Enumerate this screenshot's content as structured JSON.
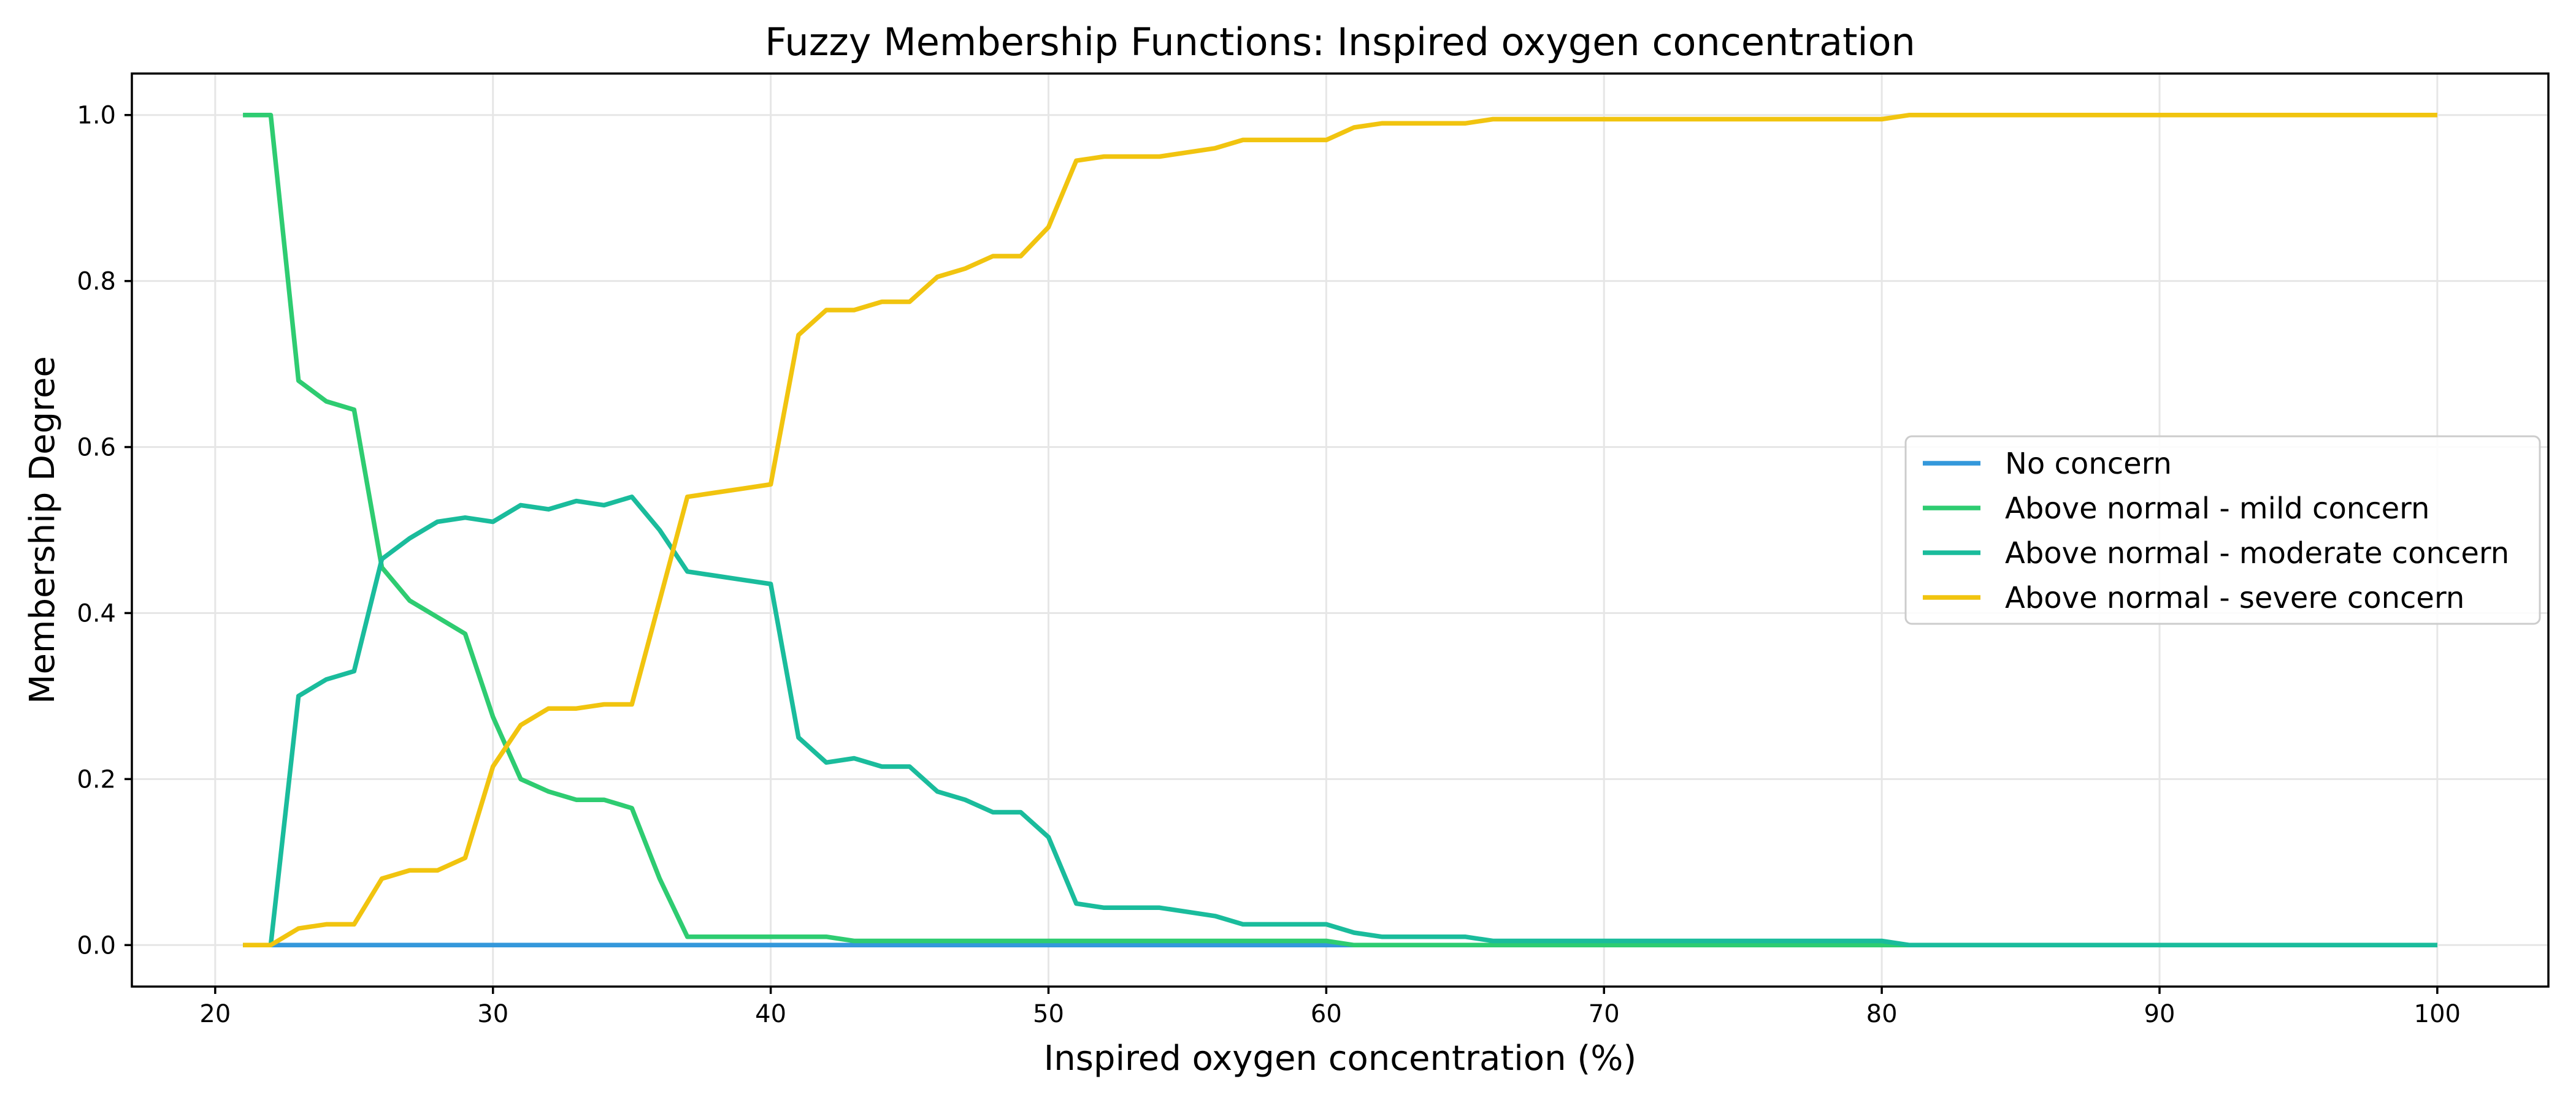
{
  "chart_data": {
    "type": "line",
    "title": "Fuzzy Membership Functions: Inspired oxygen concentration",
    "xlabel": "Inspired oxygen concentration (%)",
    "ylabel": "Membership Degree",
    "xlim": [
      17,
      104
    ],
    "ylim": [
      -0.05,
      1.05
    ],
    "x_ticks": [
      20,
      30,
      40,
      50,
      60,
      70,
      80,
      90,
      100
    ],
    "y_ticks": [
      0.0,
      0.2,
      0.4,
      0.6,
      0.8,
      1.0
    ],
    "x_tick_labels": [
      "20",
      "30",
      "40",
      "50",
      "60",
      "70",
      "80",
      "90",
      "100"
    ],
    "y_tick_labels": [
      "0.0",
      "0.2",
      "0.4",
      "0.6",
      "0.8",
      "1.0"
    ],
    "grid": true,
    "legend_position": "center-right",
    "x": [
      21,
      22,
      23,
      24,
      25,
      26,
      27,
      28,
      29,
      30,
      31,
      32,
      33,
      34,
      35,
      36,
      37,
      38,
      39,
      40,
      41,
      42,
      43,
      44,
      45,
      46,
      47,
      48,
      49,
      50,
      51,
      52,
      53,
      54,
      55,
      56,
      57,
      58,
      59,
      60,
      61,
      62,
      63,
      64,
      65,
      66,
      67,
      68,
      69,
      70,
      71,
      72,
      73,
      74,
      75,
      76,
      77,
      78,
      79,
      80,
      81,
      82,
      83,
      84,
      85,
      86,
      87,
      88,
      89,
      90,
      91,
      92,
      93,
      94,
      95,
      96,
      97,
      98,
      99,
      100
    ],
    "series": [
      {
        "name": "No concern",
        "color": "#3498db",
        "values": [
          0,
          0,
          0,
          0,
          0,
          0,
          0,
          0,
          0,
          0,
          0,
          0,
          0,
          0,
          0,
          0,
          0,
          0,
          0,
          0,
          0,
          0,
          0,
          0,
          0,
          0,
          0,
          0,
          0,
          0,
          0,
          0,
          0,
          0,
          0,
          0,
          0,
          0,
          0,
          0,
          0,
          0,
          0,
          0,
          0,
          0,
          0,
          0,
          0,
          0,
          0,
          0,
          0,
          0,
          0,
          0,
          0,
          0,
          0,
          0,
          0,
          0,
          0,
          0,
          0,
          0,
          0,
          0,
          0,
          0,
          0,
          0,
          0,
          0,
          0,
          0,
          0,
          0,
          0,
          0
        ]
      },
      {
        "name": "Above normal - mild concern",
        "color": "#2ecc71",
        "values": [
          1.0,
          1.0,
          0.68,
          0.655,
          0.645,
          0.455,
          0.415,
          0.395,
          0.375,
          0.275,
          0.2,
          0.185,
          0.175,
          0.175,
          0.165,
          0.08,
          0.01,
          0.01,
          0.01,
          0.01,
          0.01,
          0.01,
          0.005,
          0.005,
          0.005,
          0.005,
          0.005,
          0.005,
          0.005,
          0.005,
          0.005,
          0.005,
          0.005,
          0.005,
          0.005,
          0.005,
          0.005,
          0.005,
          0.005,
          0.005,
          0,
          0,
          0,
          0,
          0,
          0,
          0,
          0,
          0,
          0,
          0,
          0,
          0,
          0,
          0,
          0,
          0,
          0,
          0,
          0,
          0,
          0,
          0,
          0,
          0,
          0,
          0,
          0,
          0,
          0,
          0,
          0,
          0,
          0,
          0,
          0,
          0,
          0,
          0,
          0
        ]
      },
      {
        "name": "Above normal - moderate concern",
        "color": "#1abc9c",
        "values": [
          0,
          0,
          0.3,
          0.32,
          0.33,
          0.465,
          0.49,
          0.51,
          0.515,
          0.51,
          0.53,
          0.525,
          0.535,
          0.53,
          0.54,
          0.5,
          0.45,
          0.445,
          0.44,
          0.435,
          0.25,
          0.22,
          0.225,
          0.215,
          0.215,
          0.185,
          0.175,
          0.16,
          0.16,
          0.13,
          0.05,
          0.045,
          0.045,
          0.045,
          0.04,
          0.035,
          0.025,
          0.025,
          0.025,
          0.025,
          0.015,
          0.01,
          0.01,
          0.01,
          0.01,
          0.005,
          0.005,
          0.005,
          0.005,
          0.005,
          0.005,
          0.005,
          0.005,
          0.005,
          0.005,
          0.005,
          0.005,
          0.005,
          0.005,
          0.005,
          0,
          0,
          0,
          0,
          0,
          0,
          0,
          0,
          0,
          0,
          0,
          0,
          0,
          0,
          0,
          0,
          0,
          0,
          0,
          0
        ]
      },
      {
        "name": "Above normal - severe concern",
        "color": "#f1c40f",
        "values": [
          0,
          0,
          0.02,
          0.025,
          0.025,
          0.08,
          0.09,
          0.09,
          0.105,
          0.215,
          0.265,
          0.285,
          0.285,
          0.29,
          0.29,
          0.415,
          0.54,
          0.545,
          0.55,
          0.555,
          0.735,
          0.765,
          0.765,
          0.775,
          0.775,
          0.805,
          0.815,
          0.83,
          0.83,
          0.865,
          0.945,
          0.95,
          0.95,
          0.95,
          0.955,
          0.96,
          0.97,
          0.97,
          0.97,
          0.97,
          0.985,
          0.99,
          0.99,
          0.99,
          0.99,
          0.995,
          0.995,
          0.995,
          0.995,
          0.995,
          0.995,
          0.995,
          0.995,
          0.995,
          0.995,
          0.995,
          0.995,
          0.995,
          0.995,
          0.995,
          1.0,
          1.0,
          1.0,
          1.0,
          1.0,
          1.0,
          1.0,
          1.0,
          1.0,
          1.0,
          1.0,
          1.0,
          1.0,
          1.0,
          1.0,
          1.0,
          1.0,
          1.0,
          1.0,
          1.0
        ]
      }
    ]
  }
}
